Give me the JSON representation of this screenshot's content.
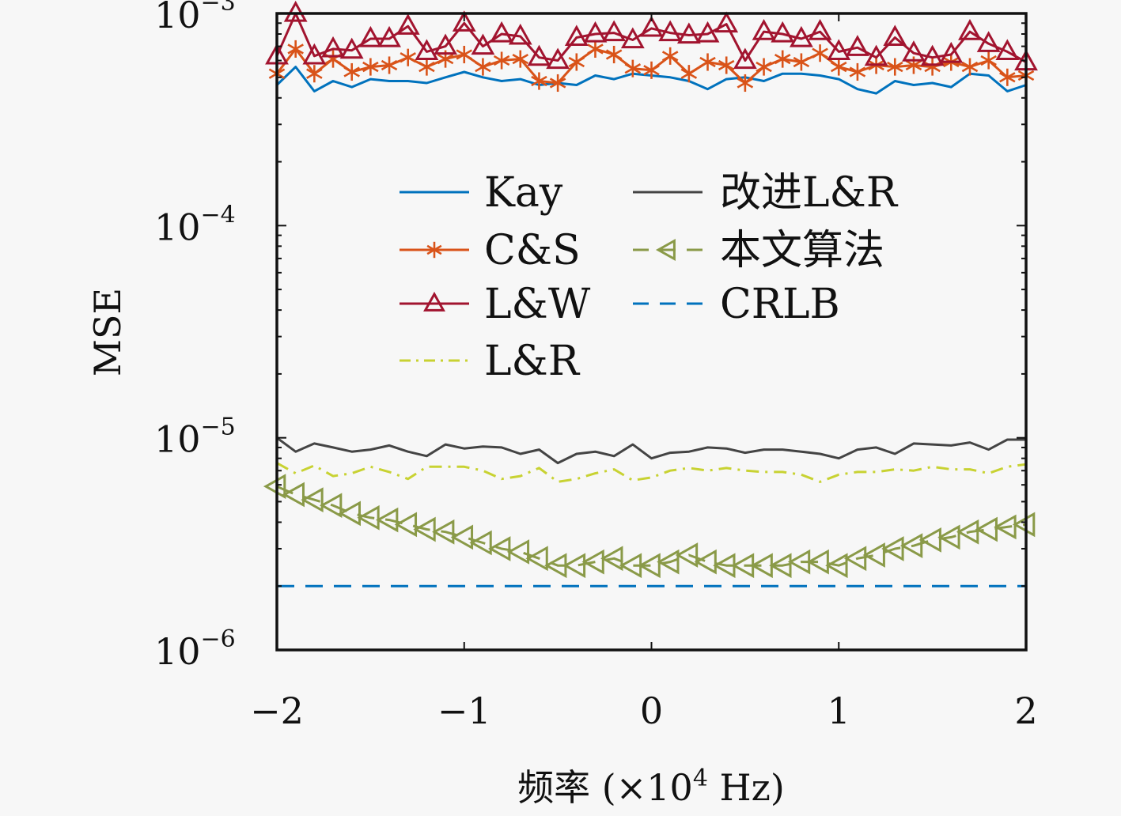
{
  "chart_data": {
    "type": "line",
    "title": "",
    "xlabel": "频率 (×10⁴ Hz)",
    "xlabel_parts": {
      "prefix": "频率 (×10",
      "sup": "4",
      "suffix": " Hz)"
    },
    "ylabel": "MSE",
    "xlim": [
      -2,
      2
    ],
    "ylim": [
      1e-06,
      0.001
    ],
    "yscale": "log",
    "grid": false,
    "legend_position": "center",
    "x_ticks": [
      {
        "value": -2,
        "label": "−2"
      },
      {
        "value": -1,
        "label": "−1"
      },
      {
        "value": 0,
        "label": "0"
      },
      {
        "value": 1,
        "label": "1"
      },
      {
        "value": 2,
        "label": "2"
      }
    ],
    "y_ticks": [
      {
        "value": 0.001,
        "base": "10",
        "exp": "−3"
      },
      {
        "value": 0.0001,
        "base": "10",
        "exp": "−4"
      },
      {
        "value": 1e-05,
        "base": "10",
        "exp": "−5"
      },
      {
        "value": 1e-06,
        "base": "10",
        "exp": "−6"
      }
    ],
    "x": [
      -2.0,
      -1.9,
      -1.8,
      -1.7,
      -1.6,
      -1.5,
      -1.4,
      -1.3,
      -1.2,
      -1.1,
      -1.0,
      -0.9,
      -0.8,
      -0.7,
      -0.6,
      -0.5,
      -0.4,
      -0.3,
      -0.2,
      -0.1,
      0.0,
      0.1,
      0.2,
      0.3,
      0.4,
      0.5,
      0.6,
      0.7,
      0.8,
      0.9,
      1.0,
      1.1,
      1.2,
      1.3,
      1.4,
      1.5,
      1.6,
      1.7,
      1.8,
      1.9,
      2.0
    ],
    "series": [
      {
        "name": "Kay",
        "color": "#0072bd",
        "style": "solid",
        "marker": "none",
        "values": [
          0.00046,
          0.00056,
          0.00043,
          0.00048,
          0.00045,
          0.00049,
          0.00048,
          0.00048,
          0.00047,
          0.0005,
          0.00053,
          0.0005,
          0.00048,
          0.00049,
          0.00046,
          0.00047,
          0.00046,
          0.00051,
          0.00049,
          0.00052,
          0.00051,
          0.0005,
          0.00048,
          0.00044,
          0.00049,
          0.0005,
          0.00048,
          0.00052,
          0.00052,
          0.00051,
          0.00049,
          0.00044,
          0.00042,
          0.00048,
          0.00046,
          0.00047,
          0.00045,
          0.00052,
          0.00051,
          0.00043,
          0.00046
        ]
      },
      {
        "name": "C&S",
        "color": "#d95319",
        "style": "solid",
        "marker": "asterisk",
        "values": [
          0.00052,
          0.00068,
          0.00052,
          0.00061,
          0.00053,
          0.00056,
          0.00057,
          0.00062,
          0.00056,
          0.00061,
          0.00064,
          0.00056,
          0.0006,
          0.00061,
          0.00048,
          0.00047,
          0.00059,
          0.00068,
          0.00064,
          0.00055,
          0.00054,
          0.00063,
          0.00052,
          0.00059,
          0.00057,
          0.00047,
          0.00056,
          0.00061,
          0.00059,
          0.00065,
          0.00056,
          0.00053,
          0.00057,
          0.00056,
          0.00057,
          0.00056,
          0.00059,
          0.00056,
          0.0006,
          0.0005,
          0.00051
        ]
      },
      {
        "name": "L&W",
        "color": "#a2142f",
        "style": "solid",
        "marker": "triangle-up",
        "values": [
          0.00063,
          0.001,
          0.00063,
          0.00068,
          0.00067,
          0.00076,
          0.00076,
          0.00087,
          0.00066,
          0.0007,
          0.0009,
          0.0007,
          0.0008,
          0.00078,
          0.00062,
          0.0006,
          0.00077,
          0.0008,
          0.00081,
          0.00075,
          0.00085,
          0.00081,
          0.00079,
          0.0008,
          0.00089,
          0.0006,
          0.00082,
          0.0008,
          0.00076,
          0.00082,
          0.00066,
          0.00069,
          0.00062,
          0.00077,
          0.00065,
          0.00062,
          0.00064,
          0.00082,
          0.00072,
          0.00066,
          0.00059
        ]
      },
      {
        "name": "L&R",
        "color": "#c8d232",
        "style": "dashdot",
        "marker": "none",
        "values": [
          7.6e-06,
          6.8e-06,
          7.4e-06,
          6.6e-06,
          6.8e-06,
          7.3e-06,
          6.9e-06,
          6.4e-06,
          7.3e-06,
          7.3e-06,
          7.3e-06,
          7e-06,
          6.4e-06,
          6.6e-06,
          7.2e-06,
          6.2e-06,
          6.4e-06,
          6.8e-06,
          7.1e-06,
          6.3e-06,
          6.5e-06,
          7e-06,
          7.2e-06,
          7e-06,
          7.2e-06,
          7e-06,
          6.9e-06,
          6.9e-06,
          6.7e-06,
          6.2e-06,
          6.7e-06,
          6.9e-06,
          6.9e-06,
          7.1e-06,
          7e-06,
          7.3e-06,
          7.1e-06,
          7.1e-06,
          6.8e-06,
          7.3e-06,
          7.5e-06
        ]
      },
      {
        "name": "改进L&R",
        "color": "#444444",
        "style": "solid",
        "marker": "none",
        "values": [
          1e-05,
          8.6e-06,
          9.4e-06,
          9e-06,
          8.6e-06,
          8.8e-06,
          9.2e-06,
          8.6e-06,
          8.2e-06,
          9.3e-06,
          8.9e-06,
          9.1e-06,
          9e-06,
          8.4e-06,
          8.8e-06,
          7.6e-06,
          8.4e-06,
          8.6e-06,
          8.2e-06,
          9.3e-06,
          8e-06,
          8.5e-06,
          8.6e-06,
          9e-06,
          8.9e-06,
          8.5e-06,
          8.8e-06,
          8.8e-06,
          8.6e-06,
          8.4e-06,
          8e-06,
          8.8e-06,
          9e-06,
          8.4e-06,
          9.4e-06,
          9.3e-06,
          9.2e-06,
          9.5e-06,
          8.8e-06,
          9.8e-06,
          9.8e-06
        ]
      },
      {
        "name": "本文算法",
        "color": "#7e8c3a",
        "style": "dashed",
        "marker": "triangle-left",
        "values": [
          5.9e-06,
          5.4e-06,
          5.1e-06,
          4.8e-06,
          4.4e-06,
          4.2e-06,
          4.1e-06,
          3.9e-06,
          3.7e-06,
          3.6e-06,
          3.4e-06,
          3.2e-06,
          3e-06,
          2.9e-06,
          2.7e-06,
          2.5e-06,
          2.5e-06,
          2.6e-06,
          2.7e-06,
          2.5e-06,
          2.5e-06,
          2.6e-06,
          2.8e-06,
          2.6e-06,
          2.5e-06,
          2.5e-06,
          2.5e-06,
          2.5e-06,
          2.6e-06,
          2.6e-06,
          2.5e-06,
          2.7e-06,
          2.8e-06,
          3e-06,
          3.1e-06,
          3.3e-06,
          3.4e-06,
          3.6e-06,
          3.7e-06,
          3.8e-06,
          3.9e-06
        ]
      },
      {
        "name": "CRLB",
        "color": "#0072bd",
        "style": "dashed",
        "marker": "none",
        "values": [
          2e-06,
          2e-06,
          2e-06,
          2e-06,
          2e-06,
          2e-06,
          2e-06,
          2e-06,
          2e-06,
          2e-06,
          2e-06,
          2e-06,
          2e-06,
          2e-06,
          2e-06,
          2e-06,
          2e-06,
          2e-06,
          2e-06,
          2e-06,
          2e-06,
          2e-06,
          2e-06,
          2e-06,
          2e-06,
          2e-06,
          2e-06,
          2e-06,
          2e-06,
          2e-06,
          2e-06,
          2e-06,
          2e-06,
          2e-06,
          2e-06,
          2e-06,
          2e-06,
          2e-06,
          2e-06,
          2e-06,
          2e-06
        ]
      }
    ],
    "legend": [
      {
        "label": "Kay",
        "series": "Kay"
      },
      {
        "label": "C&S",
        "series": "C&S"
      },
      {
        "label": "L&W",
        "series": "L&W"
      },
      {
        "label": "L&R",
        "series": "L&R"
      },
      {
        "label": "改进L&R",
        "series": "改进L&R"
      },
      {
        "label": "本文算法",
        "series": "本文算法"
      },
      {
        "label": "CRLB",
        "series": "CRLB"
      }
    ]
  }
}
